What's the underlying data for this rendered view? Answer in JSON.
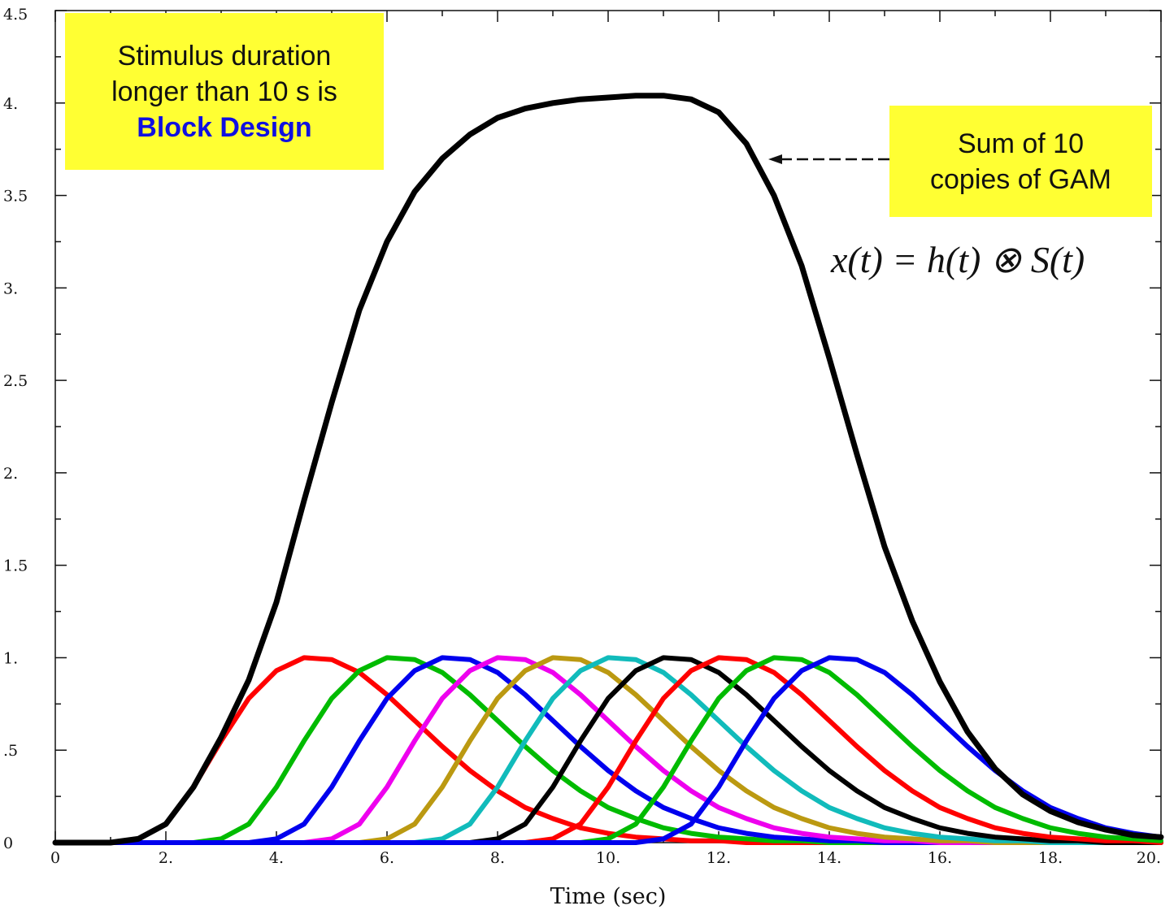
{
  "chart_data": {
    "type": "line",
    "title": "",
    "xlabel": "Time (sec)",
    "ylabel": "",
    "xlim": [
      0,
      20
    ],
    "ylim": [
      0,
      4.5
    ],
    "x_ticks": [
      0,
      2,
      4,
      6,
      8,
      10,
      12,
      14,
      16,
      18,
      20
    ],
    "x_tick_labels": [
      "0",
      "2.",
      "4.",
      "6.",
      "8.",
      "10.",
      "12.",
      "14.",
      "16.",
      "18.",
      "20."
    ],
    "y_ticks": [
      0,
      0.5,
      1,
      1.5,
      2,
      2.5,
      3,
      3.5,
      4,
      4.5
    ],
    "y_tick_labels": [
      "0",
      ".5",
      "1.",
      "1.5",
      "2.",
      "2.5",
      "3.",
      "3.5",
      "4.",
      "4.5"
    ],
    "grid": false,
    "x": [
      0,
      0.5,
      1,
      1.5,
      2,
      2.5,
      3,
      3.5,
      4,
      4.5,
      5,
      5.5,
      6,
      6.5,
      7,
      7.5,
      8,
      8.5,
      9,
      9.5,
      10,
      10.5,
      11,
      11.5,
      12,
      12.5,
      13,
      13.5,
      14,
      14.5,
      15,
      15.5,
      16,
      16.5,
      17,
      17.5,
      18,
      18.5,
      19,
      19.5,
      20
    ],
    "series": [
      {
        "color": "#ff0000",
        "values": [
          0,
          0,
          0,
          0.02,
          0.1,
          0.3,
          0.55,
          0.78,
          0.93,
          1.0,
          0.99,
          0.92,
          0.8,
          0.66,
          0.52,
          0.39,
          0.28,
          0.19,
          0.13,
          0.08,
          0.05,
          0.03,
          0.02,
          0.01,
          0.01,
          0,
          0,
          0,
          0,
          0,
          0,
          0,
          0,
          0,
          0,
          0,
          0,
          0,
          0,
          0,
          0
        ]
      },
      {
        "color": "#00bb00",
        "values": [
          0,
          0,
          0,
          0,
          0,
          0,
          0.02,
          0.1,
          0.3,
          0.55,
          0.78,
          0.93,
          1.0,
          0.99,
          0.92,
          0.8,
          0.66,
          0.52,
          0.39,
          0.28,
          0.19,
          0.13,
          0.08,
          0.05,
          0.03,
          0.02,
          0.01,
          0.01,
          0,
          0,
          0,
          0,
          0,
          0,
          0,
          0,
          0,
          0,
          0,
          0,
          0
        ]
      },
      {
        "color": "#0000ee",
        "values": [
          0,
          0,
          0,
          0,
          0,
          0,
          0,
          0,
          0.02,
          0.1,
          0.3,
          0.55,
          0.78,
          0.93,
          1.0,
          0.99,
          0.92,
          0.8,
          0.66,
          0.52,
          0.39,
          0.28,
          0.19,
          0.13,
          0.08,
          0.05,
          0.03,
          0.02,
          0.01,
          0.01,
          0,
          0,
          0,
          0,
          0,
          0,
          0,
          0,
          0,
          0,
          0
        ]
      },
      {
        "color": "#ee00ee",
        "values": [
          0,
          0,
          0,
          0,
          0,
          0,
          0,
          0,
          0,
          0,
          0.02,
          0.1,
          0.3,
          0.55,
          0.78,
          0.93,
          1.0,
          0.99,
          0.92,
          0.8,
          0.66,
          0.52,
          0.39,
          0.28,
          0.19,
          0.13,
          0.08,
          0.05,
          0.03,
          0.02,
          0.01,
          0.01,
          0,
          0,
          0,
          0,
          0,
          0,
          0,
          0,
          0
        ]
      },
      {
        "color": "#bb9911",
        "values": [
          0,
          0,
          0,
          0,
          0,
          0,
          0,
          0,
          0,
          0,
          0,
          0,
          0.02,
          0.1,
          0.3,
          0.55,
          0.78,
          0.93,
          1.0,
          0.99,
          0.92,
          0.8,
          0.66,
          0.52,
          0.39,
          0.28,
          0.19,
          0.13,
          0.08,
          0.05,
          0.03,
          0.02,
          0.01,
          0.01,
          0,
          0,
          0,
          0,
          0,
          0,
          0
        ]
      },
      {
        "color": "#11bbbb",
        "values": [
          0,
          0,
          0,
          0,
          0,
          0,
          0,
          0,
          0,
          0,
          0,
          0,
          0,
          0,
          0.02,
          0.1,
          0.3,
          0.55,
          0.78,
          0.93,
          1.0,
          0.99,
          0.92,
          0.8,
          0.66,
          0.52,
          0.39,
          0.28,
          0.19,
          0.13,
          0.08,
          0.05,
          0.03,
          0.02,
          0.01,
          0.01,
          0,
          0,
          0,
          0,
          0
        ]
      },
      {
        "color": "#000000",
        "values": [
          0,
          0,
          0,
          0,
          0,
          0,
          0,
          0,
          0,
          0,
          0,
          0,
          0,
          0,
          0,
          0,
          0.02,
          0.1,
          0.3,
          0.55,
          0.78,
          0.93,
          1.0,
          0.99,
          0.92,
          0.8,
          0.66,
          0.52,
          0.39,
          0.28,
          0.19,
          0.13,
          0.08,
          0.05,
          0.03,
          0.02,
          0.01,
          0.01,
          0,
          0,
          0
        ]
      },
      {
        "color": "#ff0000",
        "values": [
          0,
          0,
          0,
          0,
          0,
          0,
          0,
          0,
          0,
          0,
          0,
          0,
          0,
          0,
          0,
          0,
          0,
          0,
          0.02,
          0.1,
          0.3,
          0.55,
          0.78,
          0.93,
          1.0,
          0.99,
          0.92,
          0.8,
          0.66,
          0.52,
          0.39,
          0.28,
          0.19,
          0.13,
          0.08,
          0.05,
          0.03,
          0.02,
          0.01,
          0.01,
          0
        ]
      },
      {
        "color": "#00bb00",
        "values": [
          0,
          0,
          0,
          0,
          0,
          0,
          0,
          0,
          0,
          0,
          0,
          0,
          0,
          0,
          0,
          0,
          0,
          0,
          0,
          0,
          0.02,
          0.1,
          0.3,
          0.55,
          0.78,
          0.93,
          1.0,
          0.99,
          0.92,
          0.8,
          0.66,
          0.52,
          0.39,
          0.28,
          0.19,
          0.13,
          0.08,
          0.05,
          0.03,
          0.02,
          0.01
        ]
      },
      {
        "color": "#0000ee",
        "values": [
          0,
          0,
          0,
          0,
          0,
          0,
          0,
          0,
          0,
          0,
          0,
          0,
          0,
          0,
          0,
          0,
          0,
          0,
          0,
          0,
          0,
          0,
          0.02,
          0.1,
          0.3,
          0.55,
          0.78,
          0.93,
          1.0,
          0.99,
          0.92,
          0.8,
          0.66,
          0.52,
          0.39,
          0.28,
          0.19,
          0.13,
          0.08,
          0.05,
          0.03
        ]
      },
      {
        "color": "#000000",
        "values": [
          0,
          0,
          0,
          0.02,
          0.1,
          0.3,
          0.57,
          0.88,
          1.3,
          1.85,
          2.38,
          2.88,
          3.25,
          3.52,
          3.7,
          3.83,
          3.92,
          3.97,
          4.0,
          4.02,
          4.03,
          4.04,
          4.04,
          4.02,
          3.95,
          3.78,
          3.5,
          3.12,
          2.62,
          2.1,
          1.6,
          1.2,
          0.87,
          0.6,
          0.4,
          0.26,
          0.17,
          0.11,
          0.07,
          0.04,
          0.03
        ]
      }
    ]
  },
  "annotations": {
    "left_box": {
      "line1": "Stimulus duration",
      "line2": "longer than 10 s is",
      "line3": "Block Design"
    },
    "right_box": {
      "line1": "Sum of 10",
      "line2": "copies of GAM"
    },
    "formula": "x(t) = h(t) ⊗ S(t)"
  },
  "colors": {
    "callout_bg": "#ffff33",
    "highlight_text": "#1010e0"
  }
}
